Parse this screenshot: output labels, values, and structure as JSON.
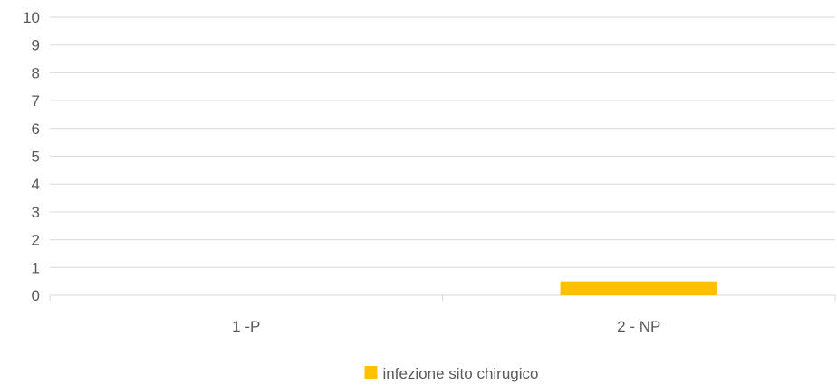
{
  "chart_data": {
    "type": "bar",
    "categories": [
      "1 -P",
      "2 - NP"
    ],
    "series": [
      {
        "name": "infezione sito chirugico",
        "values": [
          0,
          0.5
        ],
        "color": "#FFC000"
      }
    ],
    "ylim": [
      0,
      10
    ],
    "yticks": [
      0,
      1,
      2,
      3,
      4,
      5,
      6,
      7,
      8,
      9,
      10
    ],
    "grid": true,
    "legend": "bottom-center",
    "colors": {
      "grid": "#D9D9D9",
      "text": "#595959"
    }
  }
}
